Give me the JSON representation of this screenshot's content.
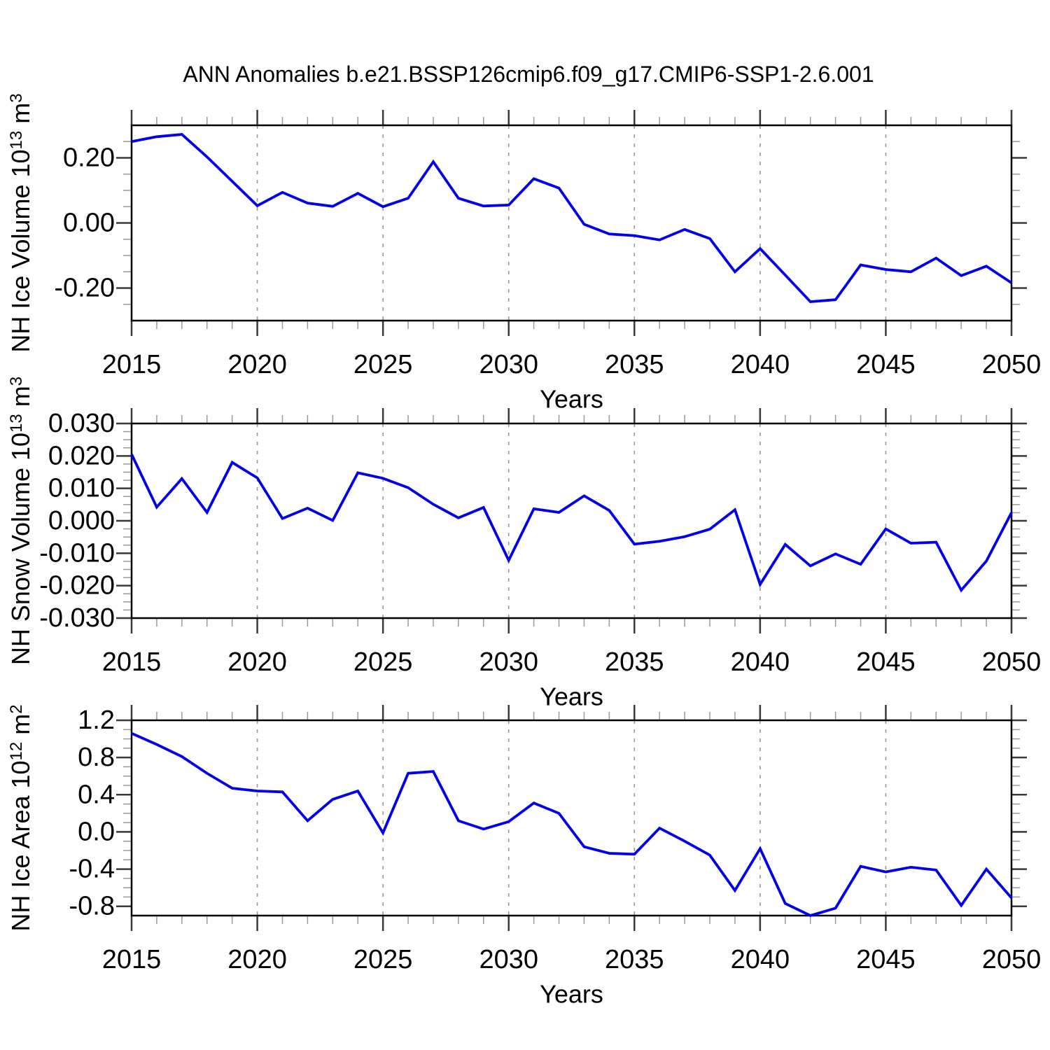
{
  "title": "ANN Anomalies b.e21.BSSP126cmip6.f09_g17.CMIP6-SSP1-2.6.001",
  "colors": {
    "line": "#0000EE",
    "axis_border": "#000000",
    "major_tick": "#3a3a3a",
    "minor_tick": "#9a9a9a",
    "gridline": "#9a9a9a",
    "background": "#ffffff",
    "text": "#000000"
  },
  "x_axis": {
    "label": "Years",
    "range": [
      2015,
      2050
    ],
    "major_tick_years": [
      2015,
      2020,
      2025,
      2030,
      2035,
      2040,
      2045,
      2050
    ],
    "minor_tick_step": 1,
    "gridline_years": [
      2020,
      2025,
      2030,
      2035,
      2040,
      2045
    ],
    "gridline_style": "dashed"
  },
  "chart_data": [
    {
      "type": "line",
      "name": "nh-ice-volume",
      "title": "",
      "xlabel": "Years",
      "ylabel": "NH Ice Volume 10^13 m^3",
      "ylabel_parts": [
        {
          "t": "NH Ice Volume 10"
        },
        {
          "t": "13",
          "sup": true
        },
        {
          "t": " m"
        },
        {
          "t": "3",
          "sup": true
        }
      ],
      "ylim": [
        -0.3,
        0.3
      ],
      "ytick_major_step": 0.2,
      "ytick_minor_step": 0.05,
      "yticks": [
        {
          "v": 0.2,
          "label": "0.20"
        },
        {
          "v": 0.0,
          "label": "0.00"
        },
        {
          "v": -0.2,
          "label": "-0.20"
        }
      ],
      "legend": "none",
      "grid": "vertical-dashed",
      "x": [
        2015,
        2016,
        2017,
        2018,
        2019,
        2020,
        2021,
        2022,
        2023,
        2024,
        2025,
        2026,
        2027,
        2028,
        2029,
        2030,
        2031,
        2032,
        2033,
        2034,
        2035,
        2036,
        2037,
        2038,
        2039,
        2040,
        2041,
        2042,
        2043,
        2044,
        2045,
        2046,
        2047,
        2048,
        2049,
        2050
      ],
      "values": [
        0.25,
        0.265,
        0.272,
        0.203,
        0.128,
        0.053,
        0.094,
        0.061,
        0.051,
        0.091,
        0.05,
        0.076,
        0.188,
        0.076,
        0.052,
        0.055,
        0.136,
        0.107,
        -0.004,
        -0.034,
        -0.039,
        -0.052,
        -0.02,
        -0.048,
        -0.15,
        -0.079,
        -0.16,
        -0.242,
        -0.236,
        -0.129,
        -0.143,
        -0.15,
        -0.108,
        -0.162,
        -0.133,
        -0.184
      ]
    },
    {
      "type": "line",
      "name": "nh-snow-volume",
      "title": "",
      "xlabel": "Years",
      "ylabel": "NH Snow Volume 10^13 m^3",
      "ylabel_parts": [
        {
          "t": "NH Snow Volume 10"
        },
        {
          "t": "13",
          "sup": true
        },
        {
          "t": " m"
        },
        {
          "t": "3",
          "sup": true
        }
      ],
      "ylim": [
        -0.03,
        0.03
      ],
      "ytick_major_step": 0.01,
      "ytick_minor_step": 0.0025,
      "yticks": [
        {
          "v": 0.03,
          "label": "0.030"
        },
        {
          "v": 0.02,
          "label": "0.020"
        },
        {
          "v": 0.01,
          "label": "0.010"
        },
        {
          "v": 0.0,
          "label": "0.000"
        },
        {
          "v": -0.01,
          "label": "-0.010"
        },
        {
          "v": -0.02,
          "label": "-0.020"
        },
        {
          "v": -0.03,
          "label": "-0.030"
        }
      ],
      "legend": "none",
      "grid": "vertical-dashed",
      "x": [
        2015,
        2016,
        2017,
        2018,
        2019,
        2020,
        2021,
        2022,
        2023,
        2024,
        2025,
        2026,
        2027,
        2028,
        2029,
        2030,
        2031,
        2032,
        2033,
        2034,
        2035,
        2036,
        2037,
        2038,
        2039,
        2040,
        2041,
        2042,
        2043,
        2044,
        2045,
        2046,
        2047,
        2048,
        2049,
        2050
      ],
      "values": [
        0.0205,
        0.0042,
        0.013,
        0.0026,
        0.018,
        0.0132,
        0.0007,
        0.0039,
        0.0001,
        0.0148,
        0.0131,
        0.0102,
        0.0051,
        0.0009,
        0.0041,
        -0.0122,
        0.0037,
        0.0026,
        0.0077,
        0.0032,
        -0.0072,
        -0.0063,
        -0.0049,
        -0.0026,
        0.0034,
        -0.0196,
        -0.0073,
        -0.0139,
        -0.0102,
        -0.0134,
        -0.0025,
        -0.0069,
        -0.0066,
        -0.0214,
        -0.0124,
        0.0025
      ]
    },
    {
      "type": "line",
      "name": "nh-ice-area",
      "title": "",
      "xlabel": "Years",
      "ylabel": "NH Ice Area 10^12 m^2",
      "ylabel_parts": [
        {
          "t": "NH Ice Area 10"
        },
        {
          "t": "12",
          "sup": true
        },
        {
          "t": " m"
        },
        {
          "t": "2",
          "sup": true
        }
      ],
      "ylim": [
        -0.9,
        1.2
      ],
      "ytick_major_step": 0.4,
      "ytick_minor_step": 0.1,
      "yticks": [
        {
          "v": 1.2,
          "label": "1.2"
        },
        {
          "v": 0.8,
          "label": "0.8"
        },
        {
          "v": 0.4,
          "label": "0.4"
        },
        {
          "v": 0.0,
          "label": "0.0"
        },
        {
          "v": -0.4,
          "label": "-0.4"
        },
        {
          "v": -0.8,
          "label": "-0.8"
        }
      ],
      "legend": "none",
      "grid": "vertical-dashed",
      "x": [
        2015,
        2016,
        2017,
        2018,
        2019,
        2020,
        2021,
        2022,
        2023,
        2024,
        2025,
        2026,
        2027,
        2028,
        2029,
        2030,
        2031,
        2032,
        2033,
        2034,
        2035,
        2036,
        2037,
        2038,
        2039,
        2040,
        2041,
        2042,
        2043,
        2044,
        2045,
        2046,
        2047,
        2048,
        2049,
        2050
      ],
      "values": [
        1.06,
        0.94,
        0.81,
        0.63,
        0.47,
        0.44,
        0.43,
        0.12,
        0.35,
        0.44,
        -0.01,
        0.63,
        0.65,
        0.12,
        0.03,
        0.11,
        0.31,
        0.2,
        -0.16,
        -0.23,
        -0.24,
        0.04,
        -0.1,
        -0.25,
        -0.63,
        -0.18,
        -0.77,
        -0.9,
        -0.82,
        -0.37,
        -0.43,
        -0.38,
        -0.41,
        -0.79,
        -0.4,
        -0.71
      ]
    }
  ]
}
